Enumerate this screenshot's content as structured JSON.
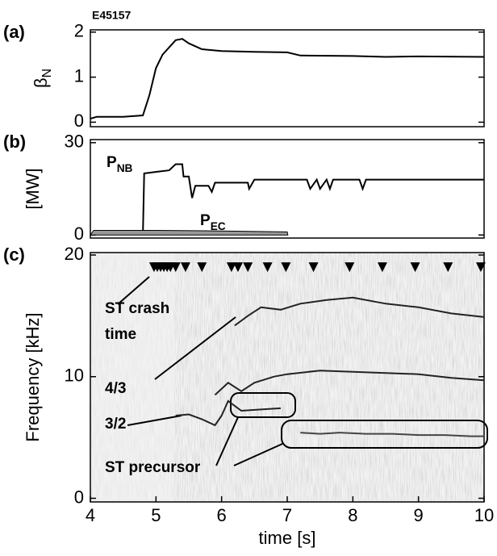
{
  "chart_data": [
    {
      "type": "line",
      "panel_label": "(a)",
      "title": "E45157",
      "ylabel": {
        "text": "β",
        "sub": "N"
      },
      "xlim": [
        4,
        10
      ],
      "ylim": [
        -0.1,
        2.05
      ],
      "yticks": [
        0,
        1,
        2
      ],
      "series": [
        {
          "color": "#000000",
          "x": [
            4.0,
            4.1,
            4.5,
            4.8,
            4.9,
            5.0,
            5.1,
            5.3,
            5.4,
            5.5,
            5.7,
            6.0,
            6.5,
            7.0,
            7.2,
            8.0,
            8.5,
            9.0,
            10.0
          ],
          "values": [
            0.08,
            0.12,
            0.12,
            0.15,
            0.6,
            1.2,
            1.5,
            1.82,
            1.85,
            1.75,
            1.62,
            1.58,
            1.56,
            1.55,
            1.48,
            1.47,
            1.45,
            1.46,
            1.45
          ]
        }
      ]
    },
    {
      "type": "line",
      "panel_label": "(b)",
      "ylabel": {
        "text": "[MW]"
      },
      "xlim": [
        4,
        10
      ],
      "ylim": [
        -1,
        31
      ],
      "yticks": [
        0,
        30
      ],
      "annotations": [
        {
          "text": "P",
          "sub": "NB"
        },
        {
          "text": "P",
          "sub": "EC"
        }
      ],
      "series": [
        {
          "color": "#000000",
          "kind": "line",
          "x": [
            4.8,
            4.82,
            5.0,
            5.2,
            5.3,
            5.4,
            5.42,
            5.5,
            5.55,
            5.6,
            5.8,
            5.85,
            5.9,
            6.4,
            6.42,
            6.5,
            7.0,
            7.3,
            7.35,
            7.45,
            7.5,
            7.6,
            7.65,
            7.7,
            8.1,
            8.15,
            8.2,
            10.0
          ],
          "values": [
            0,
            20,
            20.5,
            21,
            23,
            23,
            19,
            19,
            12,
            16,
            16,
            14,
            17,
            17,
            15,
            18,
            18,
            18,
            15,
            18,
            15,
            18,
            15,
            18,
            18,
            15,
            18,
            18
          ]
        },
        {
          "color": "#999999",
          "kind": "area",
          "x": [
            4.0,
            4.05,
            5.0,
            6.0,
            7.0,
            7.01
          ],
          "values": [
            0,
            1.5,
            1.5,
            1.3,
            1.0,
            0
          ]
        }
      ]
    },
    {
      "type": "line",
      "panel_label": "(c)",
      "ylabel": {
        "text": "Frequency [kHz]"
      },
      "xlabel": "time [s]",
      "xlim": [
        4,
        10
      ],
      "ylim": [
        -0.3,
        20.2
      ],
      "xticks": [
        4,
        5,
        6,
        7,
        8,
        9,
        10
      ],
      "yticks": [
        0,
        10,
        20
      ],
      "annotations": [
        {
          "text": "ST crash"
        },
        {
          "text": "time"
        },
        {
          "text": "4/3"
        },
        {
          "text": "3/2"
        },
        {
          "text": "ST precursor"
        }
      ],
      "series": [
        {
          "color": "#222222",
          "x": [
            6.2,
            6.4,
            6.6,
            6.9,
            7.2,
            7.6,
            8.0,
            8.5,
            9.0,
            9.5,
            10.0
          ],
          "values": [
            14.2,
            15.0,
            15.7,
            15.5,
            16.0,
            16.3,
            16.5,
            16.0,
            15.7,
            15.2,
            14.9
          ]
        },
        {
          "color": "#222222",
          "x": [
            5.9,
            6.1,
            6.3,
            6.5,
            6.8,
            7.0,
            7.5,
            8.0,
            8.5,
            9.0,
            9.5,
            10.0
          ],
          "values": [
            8.5,
            9.5,
            8.8,
            9.5,
            10.0,
            10.2,
            10.5,
            10.4,
            10.3,
            10.2,
            9.9,
            9.7
          ]
        },
        {
          "color": "#222222",
          "x": [
            5.3,
            5.5,
            5.7,
            5.9,
            6.0,
            6.1,
            6.3,
            6.6,
            6.9
          ],
          "values": [
            6.8,
            6.9,
            6.5,
            6.0,
            6.8,
            8.0,
            7.2,
            7.3,
            7.4
          ]
        },
        {
          "color": "#444444",
          "x": [
            7.2,
            7.5,
            7.8,
            8.2,
            8.6,
            9.0,
            9.4,
            9.8,
            10.0
          ],
          "values": [
            5.4,
            5.3,
            5.4,
            5.3,
            5.3,
            5.2,
            5.2,
            5.1,
            5.1
          ]
        }
      ],
      "markers": {
        "color": "#000000",
        "x": [
          4.97,
          5.02,
          5.07,
          5.12,
          5.17,
          5.22,
          5.3,
          5.45,
          5.7,
          6.15,
          6.25,
          6.4,
          6.7,
          6.98,
          7.4,
          7.95,
          8.45,
          8.95,
          9.45,
          9.95
        ],
        "values": [
          19,
          19,
          19,
          19,
          19,
          19,
          19,
          19,
          19,
          19,
          19,
          19,
          19,
          19,
          19,
          19,
          19,
          19,
          19,
          19
        ]
      }
    }
  ]
}
